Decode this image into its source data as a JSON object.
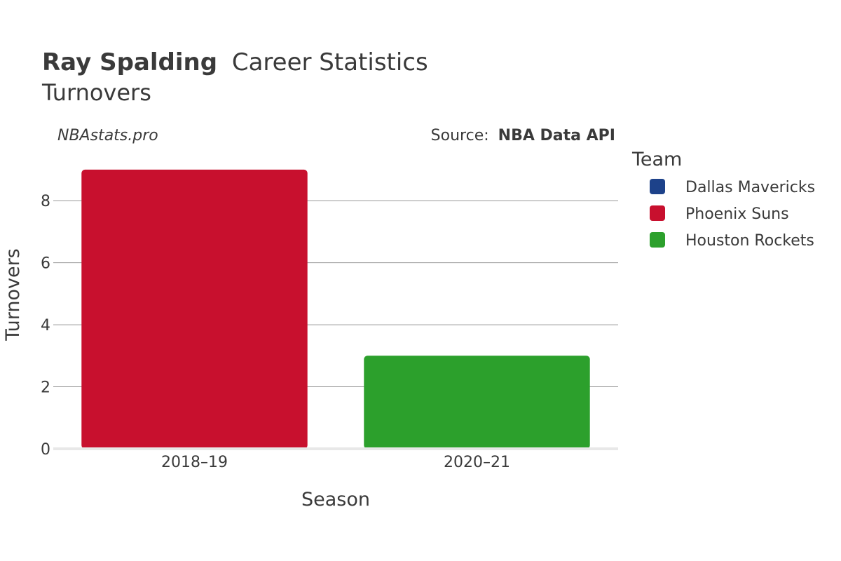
{
  "header": {
    "player_name": "Ray Spalding",
    "title_suffix": "Career Statistics",
    "subtitle": "Turnovers"
  },
  "credits": {
    "site": "NBAstats.pro",
    "source_label": "Source:",
    "source_name": "NBA Data API"
  },
  "legend": {
    "title": "Team",
    "items": [
      {
        "label": "Dallas Mavericks",
        "color": "#1d428a"
      },
      {
        "label": "Phoenix Suns",
        "color": "#c8102e"
      },
      {
        "label": "Houston Rockets",
        "color": "#2ca02c"
      }
    ]
  },
  "chart_data": {
    "type": "bar",
    "title": "Ray Spalding Career Statistics",
    "subtitle": "Turnovers",
    "xlabel": "Season",
    "ylabel": "Turnovers",
    "categories": [
      "2018–19",
      "2020–21"
    ],
    "bars": [
      {
        "category": "2018–19",
        "team": "Phoenix Suns",
        "value": 9,
        "color": "#c8102e"
      },
      {
        "category": "2020–21",
        "team": "Houston Rockets",
        "value": 3,
        "color": "#2ca02c"
      }
    ],
    "ylim": [
      0,
      9.45
    ],
    "yticks": [
      0,
      2,
      4,
      6,
      8
    ],
    "grid": true,
    "legend_position": "right"
  }
}
